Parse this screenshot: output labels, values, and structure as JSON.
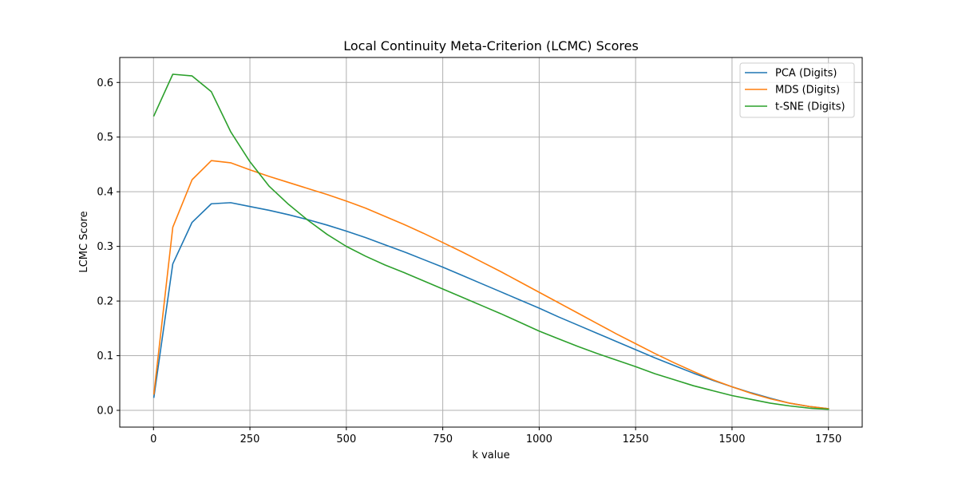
{
  "chart_data": {
    "type": "line",
    "title": "Local Continuity Meta-Criterion (LCMC) Scores",
    "xlabel": "k value",
    "ylabel": "LCMC Score",
    "xlim": [
      -87.5,
      1837.5
    ],
    "ylim": [
      -0.0307,
      0.6457
    ],
    "xticks": [
      0,
      250,
      500,
      750,
      1000,
      1250,
      1500,
      1750
    ],
    "yticks": [
      0.0,
      0.1,
      0.2,
      0.3,
      0.4,
      0.5,
      0.6
    ],
    "grid": true,
    "legend_position": "top-right",
    "series": [
      {
        "name": "PCA (Digits)",
        "color": "#1f77b4",
        "x": [
          1,
          50,
          100,
          150,
          200,
          250,
          300,
          350,
          400,
          450,
          500,
          550,
          600,
          650,
          700,
          750,
          800,
          850,
          900,
          950,
          1000,
          1050,
          1100,
          1150,
          1200,
          1250,
          1300,
          1350,
          1400,
          1450,
          1500,
          1550,
          1600,
          1650,
          1700,
          1750
        ],
        "y": [
          0.024,
          0.268,
          0.344,
          0.378,
          0.38,
          0.373,
          0.366,
          0.358,
          0.349,
          0.339,
          0.328,
          0.316,
          0.303,
          0.29,
          0.276,
          0.262,
          0.247,
          0.232,
          0.217,
          0.202,
          0.187,
          0.171,
          0.156,
          0.141,
          0.126,
          0.111,
          0.096,
          0.082,
          0.068,
          0.055,
          0.043,
          0.032,
          0.022,
          0.013,
          0.007,
          0.003
        ]
      },
      {
        "name": "MDS (Digits)",
        "color": "#ff7f0e",
        "x": [
          1,
          50,
          100,
          150,
          200,
          250,
          300,
          350,
          400,
          450,
          500,
          550,
          600,
          650,
          700,
          750,
          800,
          850,
          900,
          950,
          1000,
          1050,
          1100,
          1150,
          1200,
          1250,
          1300,
          1350,
          1400,
          1450,
          1500,
          1550,
          1600,
          1650,
          1700,
          1750
        ],
        "y": [
          0.03,
          0.335,
          0.422,
          0.457,
          0.453,
          0.44,
          0.428,
          0.417,
          0.406,
          0.395,
          0.383,
          0.37,
          0.355,
          0.34,
          0.324,
          0.307,
          0.29,
          0.272,
          0.254,
          0.235,
          0.216,
          0.197,
          0.178,
          0.159,
          0.14,
          0.122,
          0.104,
          0.087,
          0.071,
          0.056,
          0.043,
          0.031,
          0.021,
          0.013,
          0.007,
          0.003
        ]
      },
      {
        "name": "t-SNE (Digits)",
        "color": "#2ca02c",
        "x": [
          1,
          50,
          100,
          150,
          200,
          250,
          300,
          350,
          400,
          450,
          500,
          550,
          600,
          650,
          700,
          750,
          800,
          850,
          900,
          950,
          1000,
          1050,
          1100,
          1150,
          1200,
          1250,
          1300,
          1350,
          1400,
          1450,
          1500,
          1550,
          1600,
          1650,
          1700,
          1750
        ],
        "y": [
          0.539,
          0.615,
          0.612,
          0.583,
          0.51,
          0.455,
          0.41,
          0.377,
          0.348,
          0.322,
          0.3,
          0.282,
          0.266,
          0.252,
          0.237,
          0.222,
          0.207,
          0.192,
          0.177,
          0.161,
          0.145,
          0.131,
          0.117,
          0.104,
          0.092,
          0.08,
          0.067,
          0.056,
          0.045,
          0.036,
          0.027,
          0.02,
          0.013,
          0.008,
          0.004,
          0.002
        ]
      }
    ]
  }
}
